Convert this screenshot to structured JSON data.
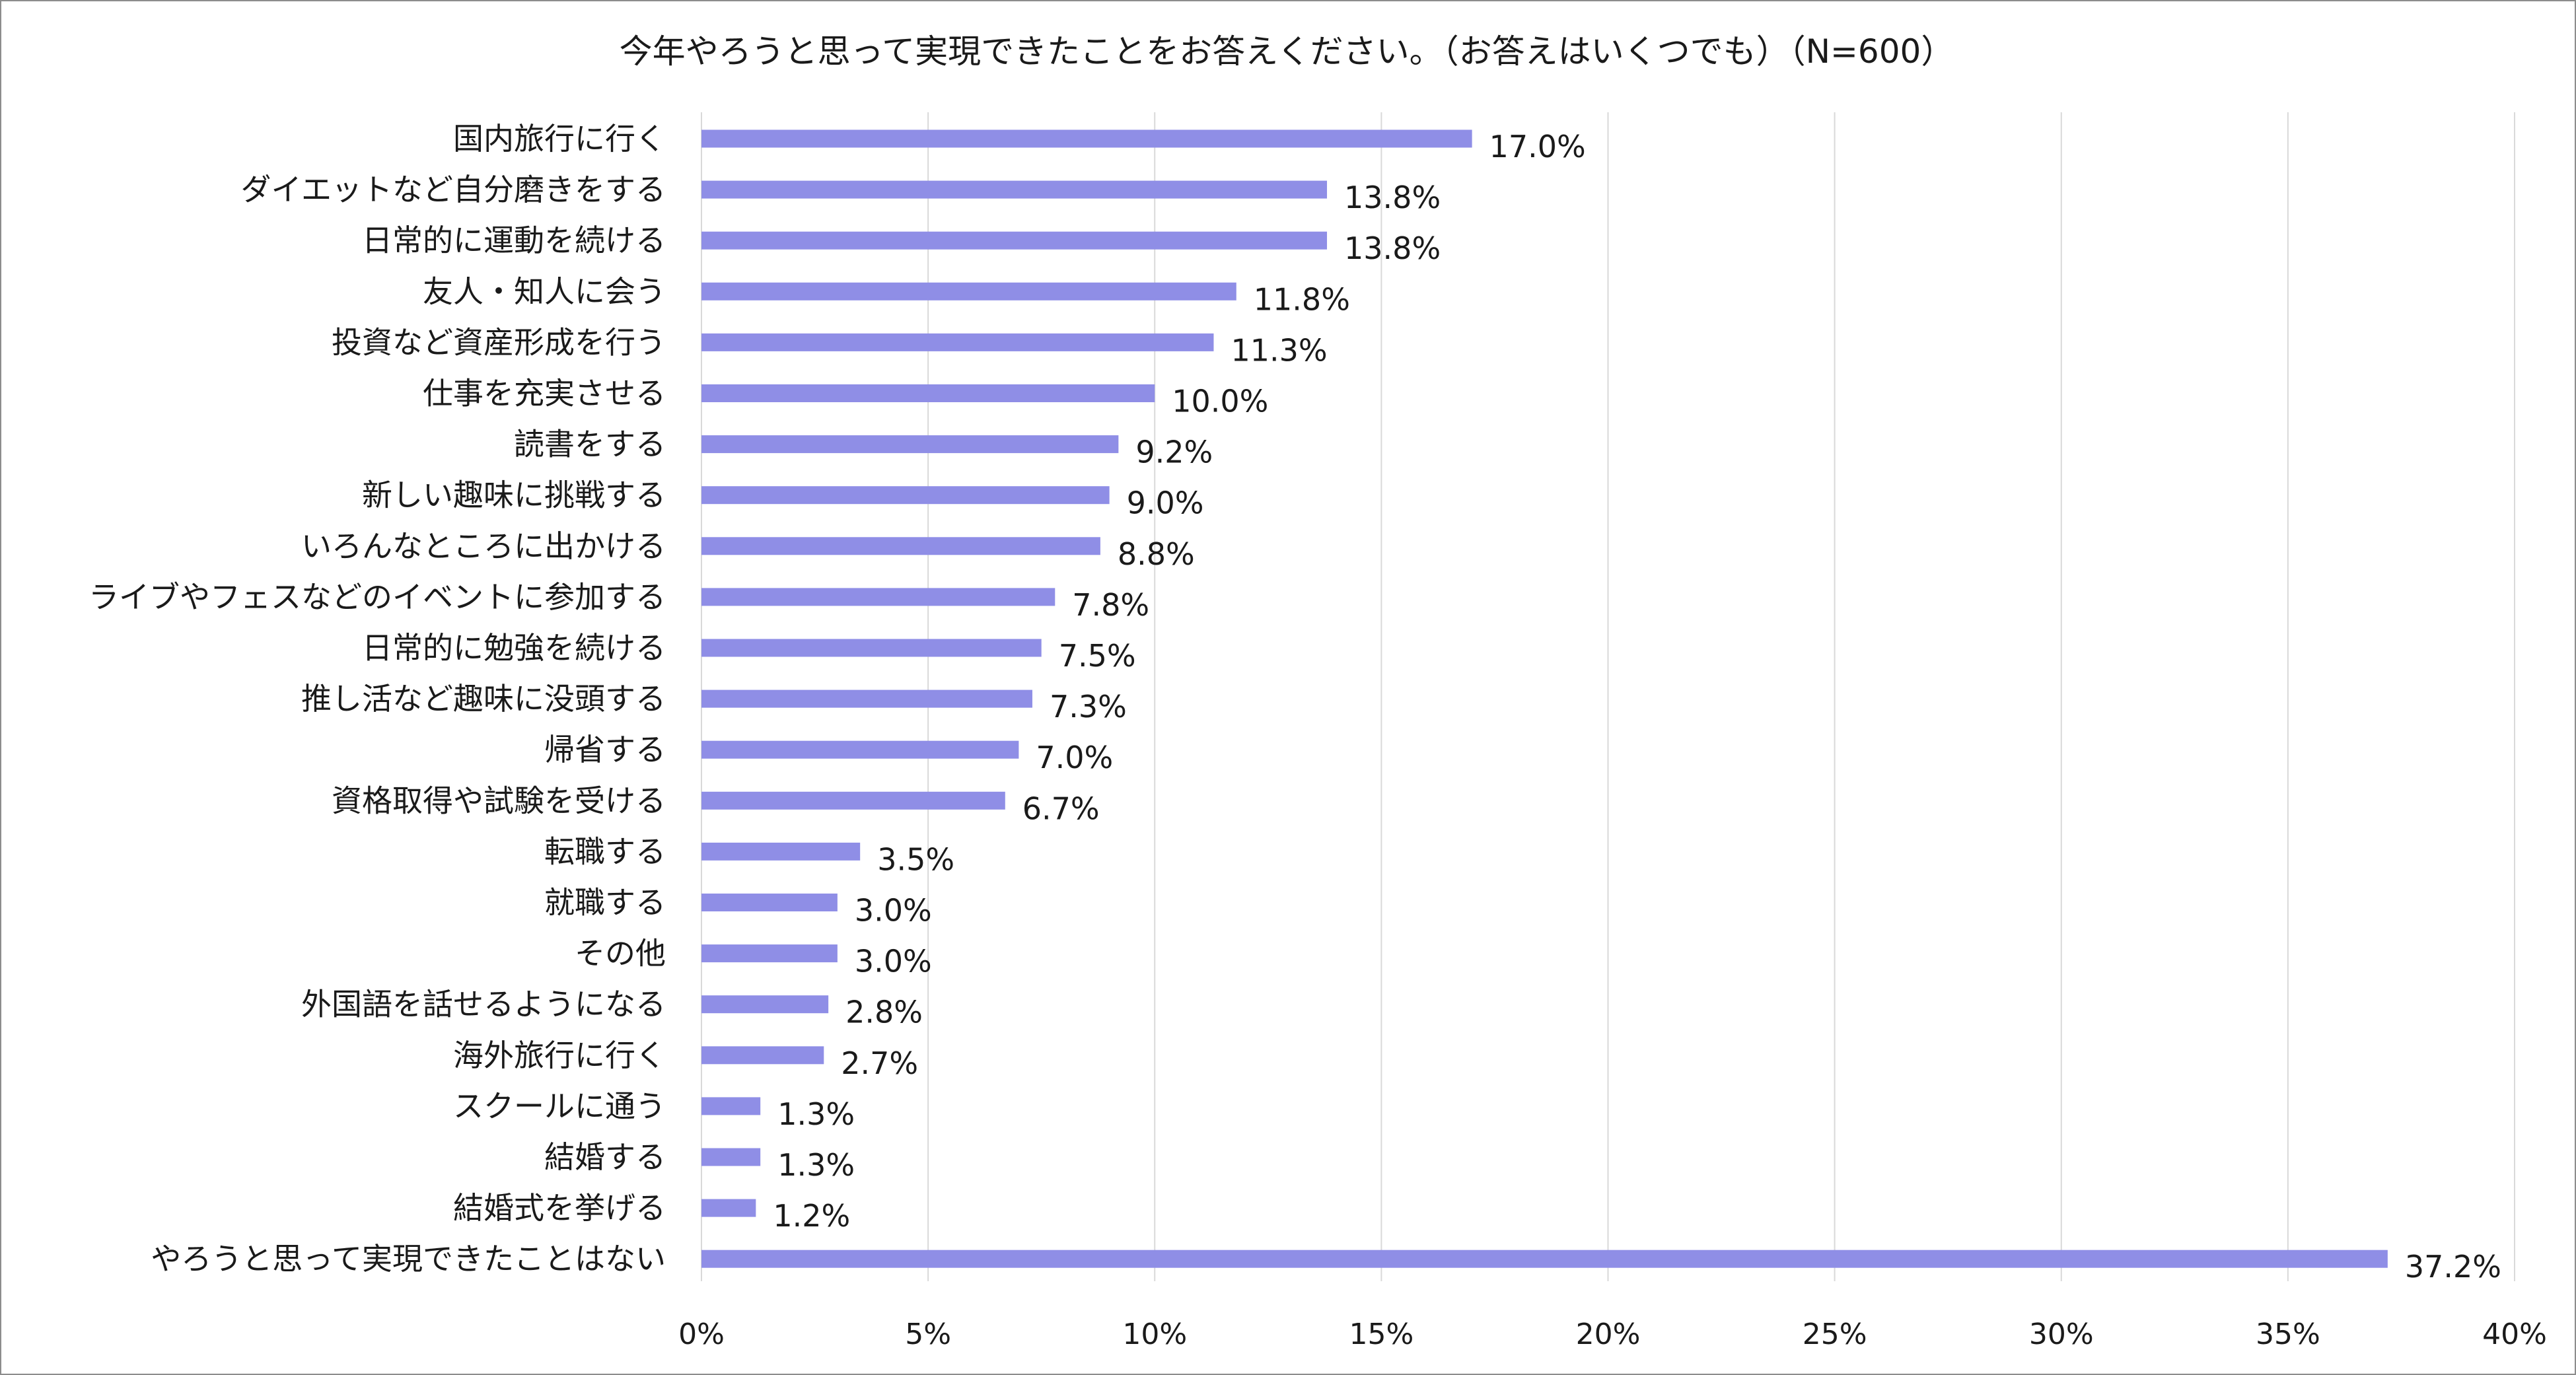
{
  "chart_data": {
    "type": "bar",
    "orientation": "horizontal",
    "title": "今年やろうと思って実現できたことをお答えください。（お答えはいくつでも）（N=600）",
    "categories": [
      "国内旅行に行く",
      "ダイエットなど自分磨きをする",
      "日常的に運動を続ける",
      "友人・知人に会う",
      "投資など資産形成を行う",
      "仕事を充実させる",
      "読書をする",
      "新しい趣味に挑戦する",
      "いろんなところに出かける",
      "ライブやフェスなどのイベントに参加する",
      "日常的に勉強を続ける",
      "推し活など趣味に没頭する",
      "帰省する",
      "資格取得や試験を受ける",
      "転職する",
      "就職する",
      "その他",
      "外国語を話せるようになる",
      "海外旅行に行く",
      "スクールに通う",
      "結婚する",
      "結婚式を挙げる",
      "やろうと思って実現できたことはない"
    ],
    "values": [
      17.0,
      13.8,
      13.8,
      11.8,
      11.3,
      10.0,
      9.2,
      9.0,
      8.8,
      7.8,
      7.5,
      7.3,
      7.0,
      6.7,
      3.5,
      3.0,
      3.0,
      2.8,
      2.7,
      1.3,
      1.3,
      1.2,
      37.2
    ],
    "value_labels": [
      "17.0%",
      "13.8%",
      "13.8%",
      "11.8%",
      "11.3%",
      "10.0%",
      "9.2%",
      "9.0%",
      "8.8%",
      "7.8%",
      "7.5%",
      "7.3%",
      "7.0%",
      "6.7%",
      "3.5%",
      "3.0%",
      "3.0%",
      "2.8%",
      "2.7%",
      "1.3%",
      "1.3%",
      "1.2%",
      "37.2%"
    ],
    "xlim": [
      0,
      40
    ],
    "xticks": [
      0,
      5,
      10,
      15,
      20,
      25,
      30,
      35,
      40
    ],
    "xtick_labels": [
      "0%",
      "5%",
      "10%",
      "15%",
      "20%",
      "25%",
      "30%",
      "35%",
      "40%"
    ],
    "xlabel": "",
    "ylabel": "",
    "grid": "vertical",
    "legend": "none",
    "bar_color": "#8f8ee6",
    "grid_color": "#d9d9d9"
  }
}
